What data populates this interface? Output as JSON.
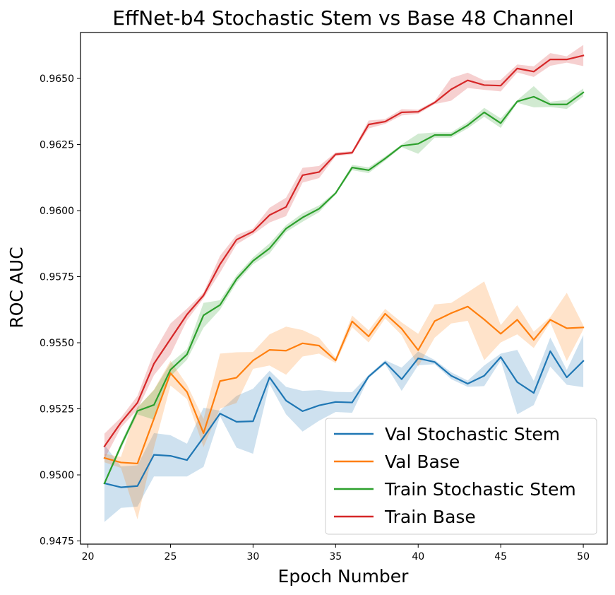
{
  "chart_data": {
    "type": "line",
    "title": "EffNet-b4 Stochastic Stem vs Base 48 Channel",
    "xlabel": "Epoch Number",
    "ylabel": "ROC AUC",
    "xlim": [
      19.55,
      51.45
    ],
    "ylim": [
      0.94738,
      0.96674
    ],
    "x_ticks": [
      20,
      25,
      30,
      35,
      40,
      45,
      50
    ],
    "x_tick_labels": [
      "20",
      "25",
      "30",
      "35",
      "40",
      "45",
      "50"
    ],
    "y_ticks": [
      0.9475,
      0.95,
      0.9525,
      0.955,
      0.9575,
      0.96,
      0.9625,
      0.965
    ],
    "y_tick_labels": [
      "0.9475",
      "0.9500",
      "0.9525",
      "0.9550",
      "0.9575",
      "0.9600",
      "0.9625",
      "0.9650"
    ],
    "grid": false,
    "legend_position": "bottom-right",
    "x": [
      21,
      22,
      23,
      24,
      25,
      26,
      27,
      28,
      29,
      30,
      31,
      32,
      33,
      34,
      35,
      36,
      37,
      38,
      39,
      40,
      41,
      42,
      43,
      44,
      45,
      46,
      47,
      48,
      49,
      50
    ],
    "series": [
      {
        "name": "Val Stochastic Stem",
        "color": "#1f77b4",
        "values": [
          0.94968,
          0.94953,
          0.94958,
          0.95076,
          0.95072,
          0.95056,
          0.95142,
          0.95232,
          0.95201,
          0.95203,
          0.95369,
          0.95281,
          0.95241,
          0.95263,
          0.95276,
          0.95274,
          0.95372,
          0.95426,
          0.95362,
          0.95441,
          0.95427,
          0.95375,
          0.95345,
          0.95375,
          0.95446,
          0.95351,
          0.9531,
          0.95468,
          0.95369,
          0.95431
        ],
        "lower": [
          0.94822,
          0.94875,
          0.9488,
          0.94994,
          0.94994,
          0.94994,
          0.9503,
          0.95222,
          0.95103,
          0.9508,
          0.95344,
          0.95229,
          0.95164,
          0.95205,
          0.95238,
          0.95235,
          0.95366,
          0.95419,
          0.95318,
          0.95415,
          0.95419,
          0.95362,
          0.95333,
          0.95336,
          0.95433,
          0.95229,
          0.95264,
          0.9541,
          0.95341,
          0.95332
        ],
        "upper": [
          0.95114,
          0.95032,
          0.95036,
          0.95158,
          0.9515,
          0.95118,
          0.95254,
          0.95243,
          0.95299,
          0.95326,
          0.95394,
          0.95333,
          0.95318,
          0.95321,
          0.95314,
          0.95313,
          0.95378,
          0.95434,
          0.95406,
          0.95467,
          0.95435,
          0.95388,
          0.95357,
          0.95414,
          0.95459,
          0.95473,
          0.95356,
          0.9552,
          0.95397,
          0.95529
        ]
      },
      {
        "name": "Val Base",
        "color": "#ff7f0e",
        "values": [
          0.95064,
          0.95047,
          0.95043,
          0.95213,
          0.95385,
          0.95314,
          0.95158,
          0.95355,
          0.95368,
          0.95433,
          0.95473,
          0.9547,
          0.95498,
          0.95489,
          0.95433,
          0.95581,
          0.95524,
          0.9561,
          0.95553,
          0.95472,
          0.95582,
          0.95612,
          0.95637,
          0.95588,
          0.95534,
          0.95587,
          0.95511,
          0.95587,
          0.95555,
          0.95558
        ],
        "lower": [
          0.95048,
          0.95026,
          0.94832,
          0.95103,
          0.95338,
          0.95287,
          0.95105,
          0.95251,
          0.95272,
          0.95401,
          0.95414,
          0.95379,
          0.95448,
          0.95459,
          0.95423,
          0.95559,
          0.95501,
          0.95592,
          0.95529,
          0.9541,
          0.95519,
          0.95573,
          0.95583,
          0.95434,
          0.95501,
          0.95532,
          0.9548,
          0.95577,
          0.95431,
          0.9555
        ],
        "upper": [
          0.9508,
          0.95068,
          0.95254,
          0.95323,
          0.95432,
          0.95341,
          0.95211,
          0.95459,
          0.95464,
          0.95465,
          0.95532,
          0.95561,
          0.95548,
          0.95519,
          0.95443,
          0.95603,
          0.95547,
          0.95628,
          0.95577,
          0.95534,
          0.95645,
          0.95651,
          0.95691,
          0.95732,
          0.95567,
          0.95642,
          0.95542,
          0.95597,
          0.95689,
          0.95566
        ]
      },
      {
        "name": "Train Stochastic Stem",
        "color": "#2ca02c",
        "values": [
          0.94968,
          0.9511,
          0.95242,
          0.95265,
          0.95398,
          0.95456,
          0.95604,
          0.95643,
          0.95741,
          0.9581,
          0.95857,
          0.95932,
          0.95974,
          0.96007,
          0.96066,
          0.96163,
          0.96153,
          0.96197,
          0.96245,
          0.96253,
          0.96286,
          0.96286,
          0.96323,
          0.96372,
          0.96331,
          0.96413,
          0.96431,
          0.96402,
          0.96402,
          0.96447
        ],
        "lower": [
          0.94963,
          0.95098,
          0.95229,
          0.95209,
          0.95373,
          0.95436,
          0.95557,
          0.95625,
          0.95727,
          0.95797,
          0.95838,
          0.95919,
          0.95958,
          0.95994,
          0.96061,
          0.96153,
          0.96142,
          0.96189,
          0.9624,
          0.96215,
          0.96276,
          0.96276,
          0.96311,
          0.96355,
          0.96313,
          0.96408,
          0.96391,
          0.96392,
          0.96385,
          0.96432
        ],
        "upper": [
          0.94973,
          0.95122,
          0.95255,
          0.95321,
          0.95423,
          0.95476,
          0.95651,
          0.95661,
          0.95755,
          0.95823,
          0.95876,
          0.95945,
          0.9599,
          0.9602,
          0.96071,
          0.96173,
          0.96164,
          0.96205,
          0.9625,
          0.96291,
          0.96296,
          0.96296,
          0.96335,
          0.96389,
          0.96349,
          0.96418,
          0.96471,
          0.96412,
          0.96419,
          0.96462
        ]
      },
      {
        "name": "Train Base",
        "color": "#d62728",
        "values": [
          0.95108,
          0.95198,
          0.95273,
          0.95421,
          0.95514,
          0.95607,
          0.95679,
          0.95797,
          0.9589,
          0.95921,
          0.95983,
          0.96014,
          0.96134,
          0.96146,
          0.96213,
          0.96219,
          0.96326,
          0.96337,
          0.96372,
          0.96374,
          0.96409,
          0.96459,
          0.96493,
          0.96475,
          0.96473,
          0.96538,
          0.96526,
          0.96572,
          0.96572,
          0.96587
        ],
        "lower": [
          0.9506,
          0.95179,
          0.95247,
          0.95377,
          0.95455,
          0.95585,
          0.95668,
          0.95765,
          0.95872,
          0.9591,
          0.95955,
          0.95979,
          0.96106,
          0.96123,
          0.96206,
          0.96213,
          0.96311,
          0.96328,
          0.9636,
          0.96366,
          0.96403,
          0.96416,
          0.96464,
          0.96457,
          0.96451,
          0.96523,
          0.96506,
          0.96548,
          0.9656,
          0.96547
        ],
        "upper": [
          0.95156,
          0.95217,
          0.95299,
          0.95465,
          0.95573,
          0.95629,
          0.9569,
          0.95829,
          0.95908,
          0.95932,
          0.96011,
          0.96049,
          0.96162,
          0.96169,
          0.9622,
          0.96225,
          0.96341,
          0.96346,
          0.96384,
          0.96382,
          0.96415,
          0.96502,
          0.96522,
          0.96493,
          0.96495,
          0.96553,
          0.96546,
          0.96596,
          0.96584,
          0.96627
        ]
      }
    ]
  }
}
